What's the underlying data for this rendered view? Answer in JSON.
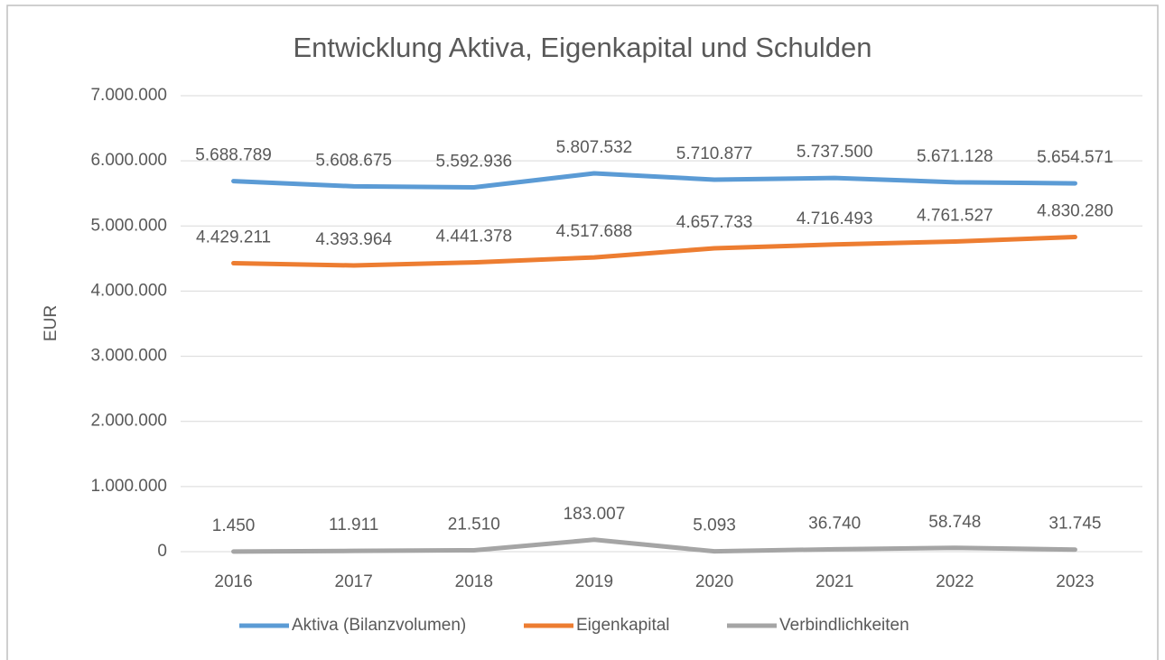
{
  "chart_data": {
    "type": "line",
    "title": "Entwicklung Aktiva, Eigenkapital und Schulden",
    "y_label": "EUR",
    "categories": [
      "2016",
      "2017",
      "2018",
      "2019",
      "2020",
      "2021",
      "2022",
      "2023"
    ],
    "ylim": [
      0,
      7000000
    ],
    "yticks": [
      0,
      {
        "value": 1000000,
        "label": "1.000.000"
      },
      {
        "value": 2000000,
        "label": "2.000.000"
      },
      {
        "value": 3000000,
        "label": "3.000.000"
      },
      {
        "value": 4000000,
        "label": "4.000.000"
      },
      {
        "value": 5000000,
        "label": "5.000.000"
      },
      {
        "value": 6000000,
        "label": "6.000.000"
      },
      {
        "value": 7000000,
        "label": "7.000.000"
      }
    ],
    "grid": true,
    "legend": "bottom",
    "series": [
      {
        "name": "Aktiva (Bilanzvolumen)",
        "color": "#5b9bd5",
        "values": [
          5688789,
          5608675,
          5592936,
          5807532,
          5710877,
          5737500,
          5671128,
          5654571
        ],
        "value_labels": [
          "5.688.789",
          "5.608.675",
          "5.592.936",
          "5.807.532",
          "5.710.877",
          "5.737.500",
          "5.671.128",
          "5.654.571"
        ]
      },
      {
        "name": "Eigenkapital",
        "color": "#ed7d31",
        "values": [
          4429211,
          4393964,
          4441378,
          4517688,
          4657733,
          4716493,
          4761527,
          4830280
        ],
        "value_labels": [
          "4.429.211",
          "4.393.964",
          "4.441.378",
          "4.517.688",
          "4.657.733",
          "4.716.493",
          "4.761.527",
          "4.830.280"
        ]
      },
      {
        "name": "Verbindlichkeiten",
        "color": "#a5a5a5",
        "values": [
          1450,
          11911,
          21510,
          183007,
          5093,
          36740,
          58748,
          31745
        ],
        "value_labels": [
          "1.450",
          "11.911",
          "21.510",
          "183.007",
          "5.093",
          "36.740",
          "58.748",
          "31.745"
        ]
      }
    ]
  }
}
